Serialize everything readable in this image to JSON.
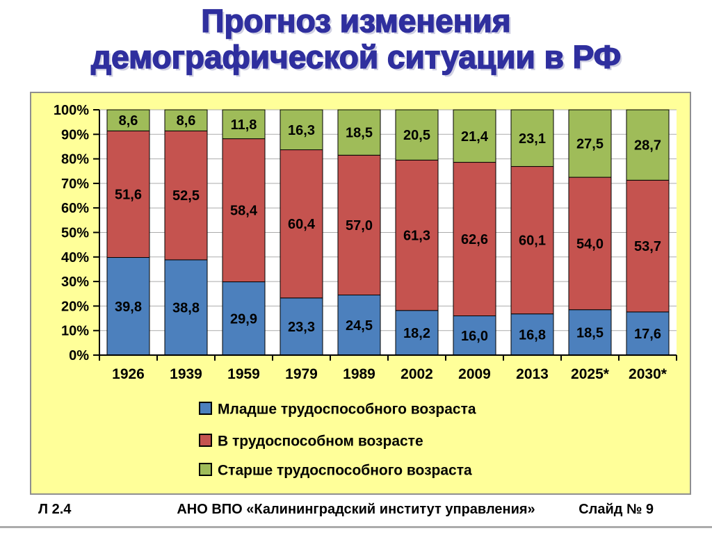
{
  "title": {
    "line1": "Прогноз изменения",
    "line2": "демографической ситуации в РФ",
    "color": "#2f2f9e"
  },
  "chart_data": {
    "type": "bar",
    "variant": "stacked-100-percent-column",
    "categories": [
      "1926",
      "1939",
      "1959",
      "1979",
      "1989",
      "2002",
      "2009",
      "2013",
      "2025*",
      "2030*"
    ],
    "series": [
      {
        "name": "Младше трудоспособного возраста",
        "color": "#4c80bd",
        "values": [
          39.8,
          38.8,
          29.9,
          23.3,
          24.5,
          18.2,
          16.0,
          16.8,
          18.5,
          17.6
        ],
        "labels": [
          "39,8",
          "38,8",
          "29,9",
          "23,3",
          "24,5",
          "18,2",
          "16,0",
          "16,8",
          "18,5",
          "17,6"
        ]
      },
      {
        "name": "В трудоспособном возрасте",
        "color": "#c5534f",
        "values": [
          51.6,
          52.5,
          58.4,
          60.4,
          57.0,
          61.3,
          62.6,
          60.1,
          54.0,
          53.7
        ],
        "labels": [
          "51,6",
          "52,5",
          "58,4",
          "60,4",
          "57,0",
          "61,3",
          "62,6",
          "60,1",
          "54,0",
          "53,7"
        ]
      },
      {
        "name": "Старше трудоспособного возраста",
        "color": "#9fbc59",
        "values": [
          8.6,
          8.6,
          11.8,
          16.3,
          18.5,
          20.5,
          21.4,
          23.1,
          27.5,
          28.7
        ],
        "labels": [
          "8,6",
          "8,6",
          "11,8",
          "16,3",
          "18,5",
          "20,5",
          "21,4",
          "23,1",
          "27,5",
          "28,7"
        ]
      }
    ],
    "ylim": [
      0,
      100
    ],
    "y_ticks": [
      "0%",
      "10%",
      "20%",
      "30%",
      "40%",
      "50%",
      "60%",
      "70%",
      "80%",
      "90%",
      "100%"
    ],
    "grid": true,
    "legend_position": "bottom-left",
    "colors": {
      "chart_bg": "#ffff99",
      "plot_bg": "#ffffff",
      "gridline": "#ababab",
      "axis": "#000000"
    }
  },
  "footer": {
    "left": "Л 2.4",
    "center": "АНО ВПО «Калининградский институт управления»",
    "right": "Слайд № 9"
  }
}
